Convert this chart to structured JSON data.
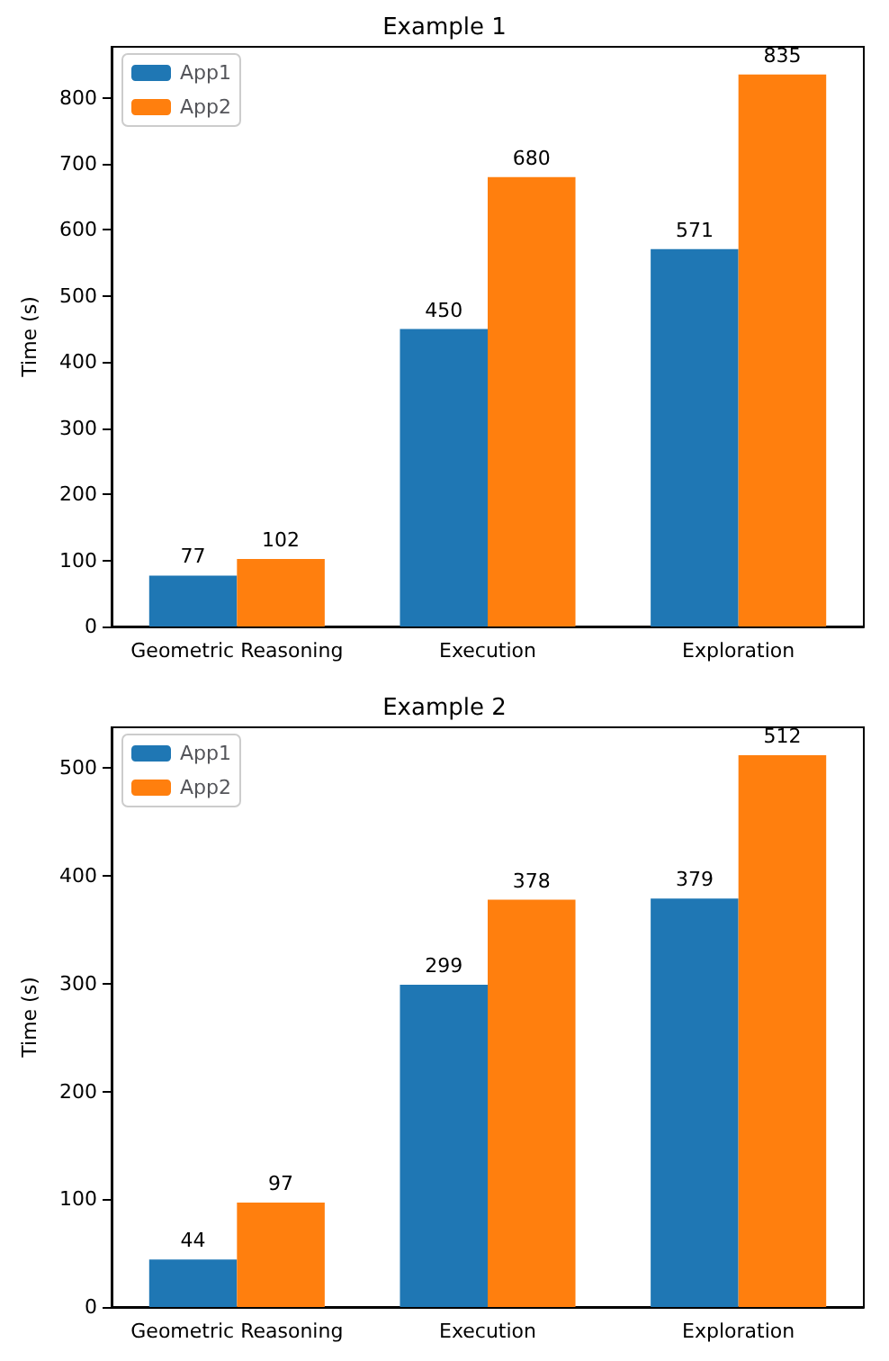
{
  "chart_data": [
    {
      "type": "bar",
      "title": "Example 1",
      "ylabel": "Time (s)",
      "categories": [
        "Geometric Reasoning",
        "Execution",
        "Exploration"
      ],
      "series": [
        {
          "name": "App1",
          "color": "#1f77b4",
          "values": [
            77,
            450,
            571
          ]
        },
        {
          "name": "App2",
          "color": "#ff7f0e",
          "values": [
            102,
            680,
            835
          ]
        }
      ],
      "ylim": [
        0,
        877
      ],
      "yticks": [
        0,
        100,
        200,
        300,
        400,
        500,
        600,
        700,
        800
      ],
      "data_labels": true,
      "legend": "top left",
      "grid": false
    },
    {
      "type": "bar",
      "title": "Example 2",
      "ylabel": "Time (s)",
      "categories": [
        "Geometric Reasoning",
        "Execution",
        "Exploration"
      ],
      "series": [
        {
          "name": "App1",
          "color": "#1f77b4",
          "values": [
            44,
            299,
            379
          ]
        },
        {
          "name": "App2",
          "color": "#ff7f0e",
          "values": [
            97,
            378,
            512
          ]
        }
      ],
      "ylim": [
        0,
        538
      ],
      "yticks": [
        0,
        100,
        200,
        300,
        400,
        500
      ],
      "data_labels": true,
      "legend": "top left",
      "grid": false
    }
  ]
}
